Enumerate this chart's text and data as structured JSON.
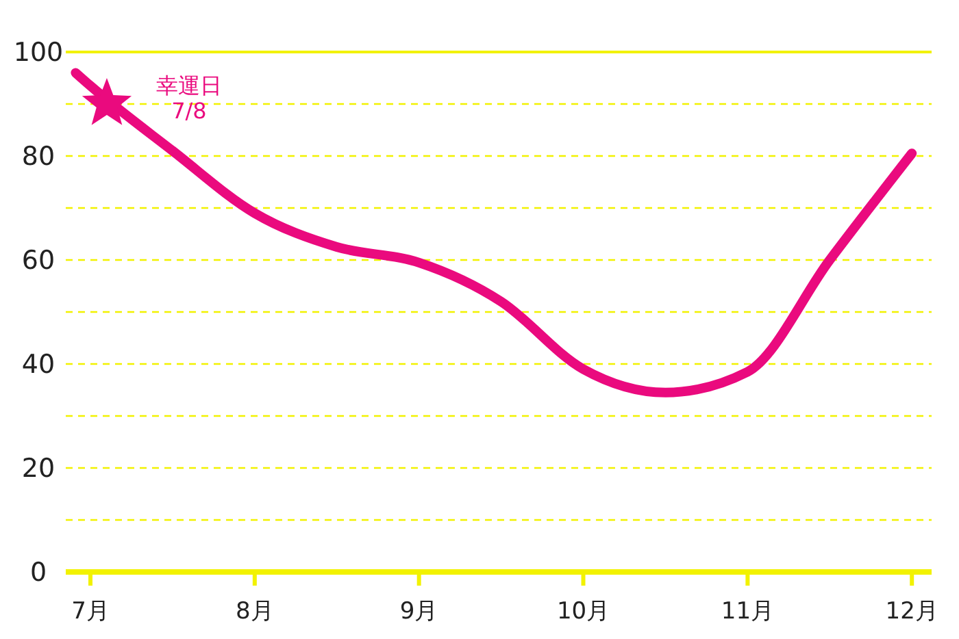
{
  "chart_data": {
    "type": "line",
    "x": [
      6.91,
      7.0,
      7.5,
      8.0,
      8.5,
      9.0,
      9.5,
      10.0,
      10.5,
      11.0,
      11.5,
      12.0
    ],
    "series": [
      {
        "color": "#ea0a7e",
        "values": [
          96,
          93.5,
          81,
          69,
          62.5,
          59.5,
          52,
          39,
          34.5,
          38.5,
          60,
          80.5
        ]
      },
      {
        "type": "scatter",
        "marker": "star",
        "color": "#ea0a7e",
        "x": [
          7.1
        ],
        "values": [
          90
        ]
      }
    ],
    "xlim": [
      6.85,
      12.12
    ],
    "xticks": [
      {
        "value": 7,
        "label": "7月"
      },
      {
        "value": 8,
        "label": "8月"
      },
      {
        "value": 9,
        "label": "9月"
      },
      {
        "value": 10,
        "label": "10月"
      },
      {
        "value": 11,
        "label": "11月"
      },
      {
        "value": 12,
        "label": "12月"
      }
    ],
    "ylim": [
      0,
      100
    ],
    "yticks": [
      0,
      {
        "value": 10,
        "label": null
      },
      20,
      {
        "value": 30,
        "label": null
      },
      40,
      {
        "value": 50,
        "label": null
      },
      60,
      {
        "value": 70,
        "label": null
      },
      80,
      {
        "value": 90,
        "label": null
      },
      100
    ],
    "grid": "y",
    "line_style": "solid",
    "marker": "none",
    "annotations": [
      {
        "text": "幸運日\n7/8",
        "x": 7.1,
        "y": 90
      }
    ]
  }
}
